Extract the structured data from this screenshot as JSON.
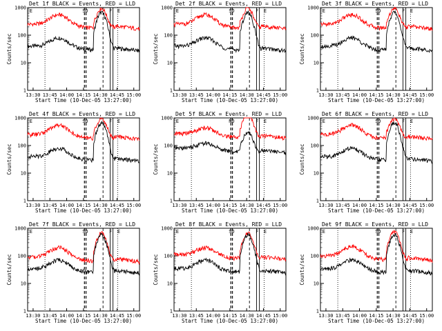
{
  "figure": {
    "x_time_labels": [
      "13:30",
      "13:45",
      "14:00",
      "14:15",
      "14:30",
      "14:45",
      "15:00"
    ],
    "y_tick_labels": [
      "1",
      "10",
      "100",
      "1000"
    ],
    "ylabel": "Counts/sec",
    "xlabel": "Start Time (10-Dec-05 13:27:00)",
    "colors": {
      "events": "#000000",
      "lld": "#ff0000",
      "axes": "#000000",
      "background": "#ffffff"
    }
  },
  "chart_data": [
    {
      "type": "line",
      "detector": "1f",
      "title": "Det 1f BLACK = Events, RED = LLD",
      "markers": [
        "E",
        "SD",
        "F",
        "E"
      ],
      "xlim": [
        0,
        100
      ],
      "ylim": [
        1,
        1000
      ],
      "yscale": "log",
      "series": [
        {
          "name": "Events",
          "color": "#000000",
          "base": 40,
          "peak_gain": 2.0,
          "flare": 22
        },
        {
          "name": "LLD",
          "color": "#ff0000",
          "base": 250,
          "peak_gain": 2.2,
          "flare": 5
        }
      ]
    },
    {
      "type": "line",
      "detector": "2f",
      "title": "Det 2f BLACK = Events, RED = LLD",
      "markers": [
        "E",
        "SD",
        "F",
        "E"
      ],
      "xlim": [
        0,
        100
      ],
      "ylim": [
        1,
        1000
      ],
      "yscale": "log",
      "series": [
        {
          "name": "Events",
          "color": "#000000",
          "base": 40,
          "peak_gain": 2.0,
          "flare": 22
        },
        {
          "name": "LLD",
          "color": "#ff0000",
          "base": 250,
          "peak_gain": 2.2,
          "flare": 5
        }
      ]
    },
    {
      "type": "line",
      "detector": "3f",
      "title": "Det 3f BLACK = Events, RED = LLD",
      "markers": [
        "E",
        "SD",
        "F",
        "E"
      ],
      "xlim": [
        0,
        100
      ],
      "ylim": [
        1,
        1000
      ],
      "yscale": "log",
      "series": [
        {
          "name": "Events",
          "color": "#000000",
          "base": 40,
          "peak_gain": 2.0,
          "flare": 22
        },
        {
          "name": "LLD",
          "color": "#ff0000",
          "base": 250,
          "peak_gain": 2.2,
          "flare": 5
        }
      ]
    },
    {
      "type": "line",
      "detector": "4f",
      "title": "Det 4f BLACK = Events, RED = LLD",
      "markers": [
        "E",
        "SD",
        "F",
        "E"
      ],
      "xlim": [
        0,
        100
      ],
      "ylim": [
        1,
        1000
      ],
      "yscale": "log",
      "series": [
        {
          "name": "Events",
          "color": "#000000",
          "base": 40,
          "peak_gain": 2.0,
          "flare": 22
        },
        {
          "name": "LLD",
          "color": "#ff0000",
          "base": 250,
          "peak_gain": 2.2,
          "flare": 5
        }
      ]
    },
    {
      "type": "line",
      "detector": "5f",
      "title": "Det 5f BLACK = Events, RED = LLD",
      "markers": [
        "E",
        "ND",
        "F",
        "E"
      ],
      "xlim": [
        0,
        100
      ],
      "ylim": [
        1,
        1000
      ],
      "yscale": "log",
      "series": [
        {
          "name": "Events",
          "color": "#000000",
          "base": 80,
          "peak_gain": 1.5,
          "flare": 5
        },
        {
          "name": "LLD",
          "color": "#ff0000",
          "base": 270,
          "peak_gain": 1.6,
          "flare": 7
        }
      ]
    },
    {
      "type": "line",
      "detector": "6f",
      "title": "Det 6f BLACK = Events, RED = LLD",
      "markers": [
        "E",
        "SD",
        "F",
        "E"
      ],
      "xlim": [
        0,
        100
      ],
      "ylim": [
        1,
        1000
      ],
      "yscale": "log",
      "series": [
        {
          "name": "Events",
          "color": "#000000",
          "base": 40,
          "peak_gain": 2.0,
          "flare": 22
        },
        {
          "name": "LLD",
          "color": "#ff0000",
          "base": 250,
          "peak_gain": 2.2,
          "flare": 5
        }
      ]
    },
    {
      "type": "line",
      "detector": "7f",
      "title": "Det 7f BLACK = Events, RED = LLD",
      "markers": [
        "E",
        "SD",
        "F",
        "E"
      ],
      "xlim": [
        0,
        100
      ],
      "ylim": [
        1,
        1000
      ],
      "yscale": "log",
      "series": [
        {
          "name": "Events",
          "color": "#000000",
          "base": 35,
          "peak_gain": 2.0,
          "flare": 22
        },
        {
          "name": "LLD",
          "color": "#ff0000",
          "base": 90,
          "peak_gain": 2.2,
          "flare": 10
        }
      ]
    },
    {
      "type": "line",
      "detector": "8f",
      "title": "Det 8f BLACK = Events, RED = LLD",
      "markers": [
        "E",
        "SD",
        "F",
        "E"
      ],
      "xlim": [
        0,
        100
      ],
      "ylim": [
        1,
        1000
      ],
      "yscale": "log",
      "series": [
        {
          "name": "Events",
          "color": "#000000",
          "base": 35,
          "peak_gain": 2.0,
          "flare": 22
        },
        {
          "name": "LLD",
          "color": "#ff0000",
          "base": 110,
          "peak_gain": 1.8,
          "flare": 8
        }
      ]
    },
    {
      "type": "line",
      "detector": "9f",
      "title": "Det 9f BLACK = Events, RED = LLD",
      "markers": [
        "E",
        "SD",
        "F",
        "E"
      ],
      "xlim": [
        0,
        100
      ],
      "ylim": [
        1,
        1000
      ],
      "yscale": "log",
      "series": [
        {
          "name": "Events",
          "color": "#000000",
          "base": 35,
          "peak_gain": 2.0,
          "flare": 22
        },
        {
          "name": "LLD",
          "color": "#ff0000",
          "base": 100,
          "peak_gain": 2.2,
          "flare": 10
        }
      ]
    }
  ]
}
